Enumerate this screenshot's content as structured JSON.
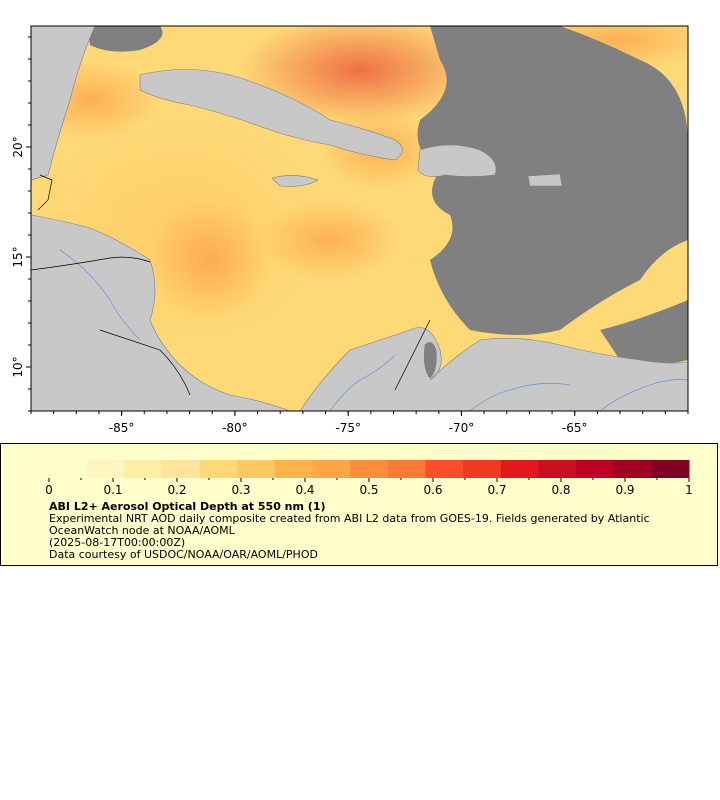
{
  "map": {
    "variable": "ABI L2+ Aerosol Optical Depth at 550 nm",
    "lon_range": [
      -89,
      -60
    ],
    "lat_range": [
      8,
      25.5
    ],
    "lon_ticks": [
      -85,
      -80,
      -75,
      -70,
      -65
    ],
    "lon_tick_labels": [
      "-85°",
      "-80°",
      "-75°",
      "-70°",
      "-65°"
    ],
    "lat_ticks": [
      20,
      15,
      10
    ],
    "lat_tick_labels": [
      "20°",
      "15°",
      "10°"
    ],
    "colors": {
      "land": "#c8c8c8",
      "no_data": "#808080",
      "coastline": "#7f7f7f",
      "rivers": "#6d9bd8",
      "borders": "#000000"
    }
  },
  "colorbar": {
    "min": 0,
    "max": 1,
    "tick_values": [
      0,
      0.1,
      0.2,
      0.3,
      0.4,
      0.5,
      0.6,
      0.7,
      0.8,
      0.9,
      1
    ],
    "tick_labels": [
      "0",
      "0.1",
      "0.2",
      "0.3",
      "0.4",
      "0.5",
      "0.6",
      "0.7",
      "0.8",
      "0.9",
      "1"
    ],
    "colors": [
      "#ffffcc",
      "#fff5c0",
      "#ffeda0",
      "#fee49a",
      "#fed976",
      "#fec863",
      "#feb24c",
      "#fea546",
      "#fd8d3c",
      "#fc7a37",
      "#fc4e2a",
      "#f03b20",
      "#e31a1c",
      "#cc0e22",
      "#bd0026",
      "#a00226",
      "#800026"
    ]
  },
  "legend": {
    "title": "ABI L2+ Aerosol Optical Depth at 550 nm (1)",
    "line1": "Experimental NRT AOD daily composite created from ABI L2 data from GOES-19. Fields generated by Atlantic OceanWatch node at NOAA/AOML",
    "line2": "(2025-08-17T00:00:00Z)",
    "line3": "Data courtesy of USDOC/NOAA/OAR/AOML/PHOD"
  }
}
